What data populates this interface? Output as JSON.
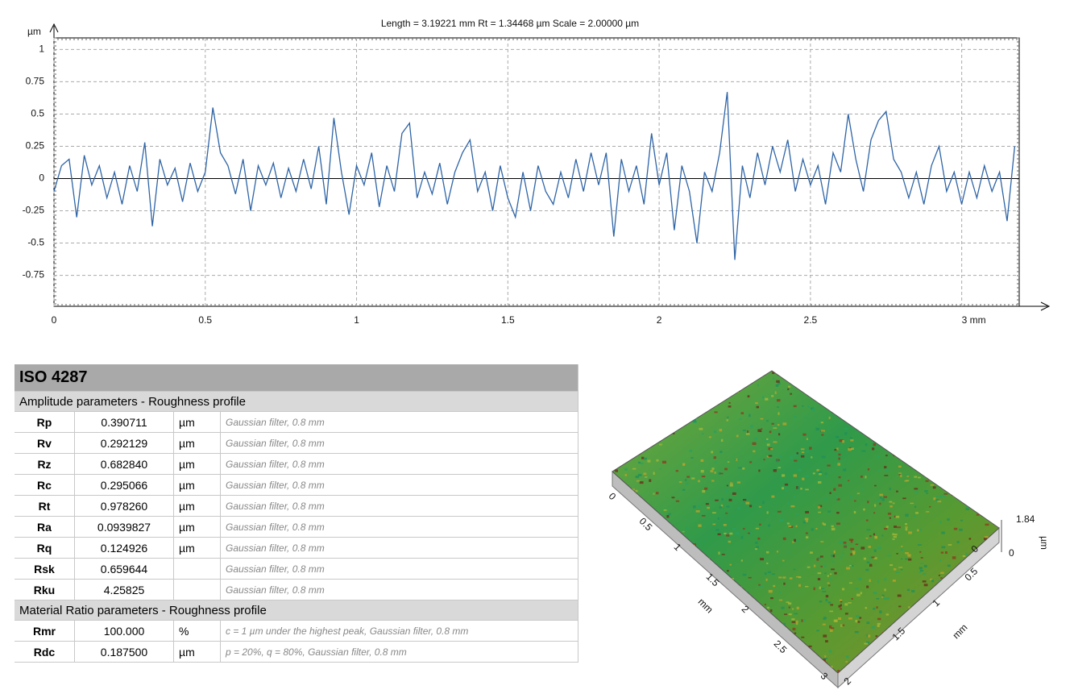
{
  "chart_data": {
    "type": "line",
    "title": "Length = 3.19221 mm  Rt = 1.34468 µm  Scale = 2.00000 µm",
    "y_label": "µm",
    "x": [
      0,
      0.025,
      0.05,
      0.075,
      0.1,
      0.125,
      0.15,
      0.175,
      0.2,
      0.225,
      0.25,
      0.275,
      0.3,
      0.325,
      0.35,
      0.375,
      0.4,
      0.425,
      0.45,
      0.475,
      0.5,
      0.525,
      0.55,
      0.575,
      0.6,
      0.625,
      0.65,
      0.675,
      0.7,
      0.725,
      0.75,
      0.775,
      0.8,
      0.825,
      0.85,
      0.875,
      0.9,
      0.925,
      0.95,
      0.975,
      1,
      1.025,
      1.05,
      1.075,
      1.1,
      1.125,
      1.15,
      1.175,
      1.2,
      1.225,
      1.25,
      1.275,
      1.3,
      1.325,
      1.35,
      1.375,
      1.4,
      1.425,
      1.45,
      1.475,
      1.5,
      1.525,
      1.55,
      1.575,
      1.6,
      1.625,
      1.65,
      1.675,
      1.7,
      1.725,
      1.75,
      1.775,
      1.8,
      1.825,
      1.85,
      1.875,
      1.9,
      1.925,
      1.95,
      1.975,
      2,
      2.025,
      2.05,
      2.075,
      2.1,
      2.125,
      2.15,
      2.175,
      2.2,
      2.225,
      2.25,
      2.275,
      2.3,
      2.325,
      2.35,
      2.375,
      2.4,
      2.425,
      2.45,
      2.475,
      2.5,
      2.525,
      2.55,
      2.575,
      2.6,
      2.625,
      2.65,
      2.675,
      2.7,
      2.725,
      2.75,
      2.775,
      2.8,
      2.825,
      2.85,
      2.875,
      2.9,
      2.925,
      2.95,
      2.975,
      3,
      3.025,
      3.05,
      3.075,
      3.1,
      3.125,
      3.15,
      3.175
    ],
    "values": [
      -0.1,
      0.1,
      0.15,
      -0.3,
      0.18,
      -0.05,
      0.1,
      -0.15,
      0.05,
      -0.2,
      0.1,
      -0.1,
      0.28,
      -0.37,
      0.15,
      -0.05,
      0.08,
      -0.18,
      0.12,
      -0.1,
      0.05,
      0.55,
      0.2,
      0.1,
      -0.12,
      0.15,
      -0.25,
      0.1,
      -0.05,
      0.12,
      -0.15,
      0.08,
      -0.1,
      0.15,
      -0.08,
      0.25,
      -0.2,
      0.47,
      0.05,
      -0.28,
      0.1,
      -0.05,
      0.2,
      -0.22,
      0.1,
      -0.1,
      0.35,
      0.43,
      -0.15,
      0.05,
      -0.12,
      0.12,
      -0.2,
      0.05,
      0.2,
      0.3,
      -0.1,
      0.05,
      -0.25,
      0.1,
      -0.15,
      -0.3,
      0.05,
      -0.25,
      0.1,
      -0.1,
      -0.2,
      0.05,
      -0.15,
      0.15,
      -0.1,
      0.2,
      -0.05,
      0.2,
      -0.45,
      0.15,
      -0.1,
      0.1,
      -0.2,
      0.35,
      -0.05,
      0.2,
      -0.4,
      0.1,
      -0.1,
      -0.5,
      0.05,
      -0.1,
      0.2,
      0.67,
      -0.63,
      0.1,
      -0.15,
      0.2,
      -0.05,
      0.25,
      0.05,
      0.3,
      -0.1,
      0.15,
      -0.05,
      0.1,
      -0.2,
      0.2,
      0.05,
      0.5,
      0.15,
      -0.1,
      0.3,
      0.45,
      0.52,
      0.15,
      0.05,
      -0.15,
      0.05,
      -0.2,
      0.1,
      0.25,
      -0.1,
      0.05,
      -0.2,
      0.05,
      -0.15,
      0.1,
      -0.1,
      0.05,
      -0.33,
      0.25
    ],
    "color": "#2e64a6",
    "xlim": [
      0,
      3.19
    ],
    "ylim": [
      -0.99,
      1.09
    ],
    "xticks": [
      0,
      0.5,
      1,
      1.5,
      2,
      2.5,
      {
        "value": 3,
        "label": "3 mm"
      }
    ],
    "yticks": [
      1,
      0.75,
      0.5,
      0.25,
      0,
      -0.25,
      -0.5,
      -0.75
    ],
    "grid": true
  },
  "table": {
    "title": "ISO 4287",
    "sections": [
      {
        "title": "Amplitude parameters - Roughness profile",
        "rows": [
          {
            "name": "Rp",
            "value": "0.390711",
            "unit": "µm",
            "note": "Gaussian filter, 0.8 mm"
          },
          {
            "name": "Rv",
            "value": "0.292129",
            "unit": "µm",
            "note": "Gaussian filter, 0.8 mm"
          },
          {
            "name": "Rz",
            "value": "0.682840",
            "unit": "µm",
            "note": "Gaussian filter, 0.8 mm"
          },
          {
            "name": "Rc",
            "value": "0.295066",
            "unit": "µm",
            "note": "Gaussian filter, 0.8 mm"
          },
          {
            "name": "Rt",
            "value": "0.978260",
            "unit": "µm",
            "note": "Gaussian filter, 0.8 mm"
          },
          {
            "name": "Ra",
            "value": "0.0939827",
            "unit": "µm",
            "note": "Gaussian filter, 0.8 mm"
          },
          {
            "name": "Rq",
            "value": "0.124926",
            "unit": "µm",
            "note": "Gaussian filter, 0.8 mm"
          },
          {
            "name": "Rsk",
            "value": "0.659644",
            "note": "Gaussian filter, 0.8 mm"
          },
          {
            "name": "Rku",
            "value": "4.25825",
            "note": "Gaussian filter, 0.8 mm"
          }
        ]
      },
      {
        "title": "Material Ratio parameters - Roughness profile",
        "rows": [
          {
            "name": "Rmr",
            "value": "100.000",
            "unit": "%",
            "note": "c = 1 µm under the highest peak, Gaussian filter, 0.8 mm"
          },
          {
            "name": "Rdc",
            "value": "0.187500",
            "unit": "µm",
            "note": "p = 20%, q = 80%, Gaussian filter, 0.8 mm"
          }
        ]
      }
    ]
  },
  "surface_3d": {
    "x_ticks": [
      0,
      0.5,
      1,
      1.5,
      2,
      2.5,
      3
    ],
    "x_unit": "mm",
    "y_ticks": [
      0,
      0.5,
      1,
      1.5,
      2
    ],
    "y_unit": "mm",
    "z_ticks": [
      0,
      1.84
    ],
    "z_unit": "µm"
  }
}
